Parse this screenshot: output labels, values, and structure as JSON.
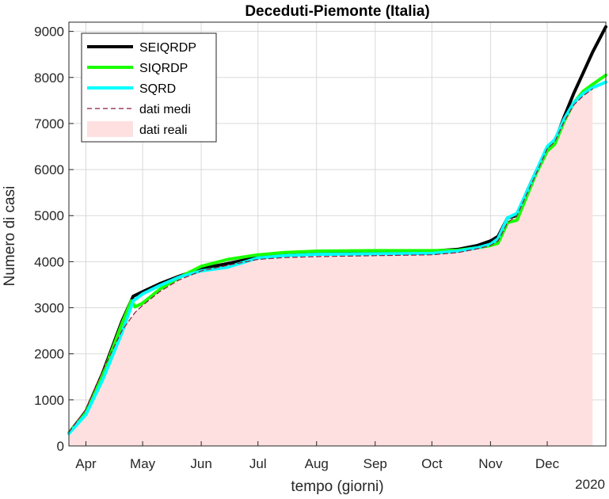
{
  "chart_data": {
    "type": "line",
    "title": "Deceduti-Piemonte (Italia)",
    "xlabel": "tempo (giorni)",
    "ylabel": "Numero di casi",
    "year_label": "2020",
    "x_unit": "date",
    "xlim": [
      "2020-03-23",
      "2021-01-01"
    ],
    "ylim": [
      0,
      9200
    ],
    "x_ticks": [
      {
        "date": "2020-04-01",
        "label": "Apr"
      },
      {
        "date": "2020-05-01",
        "label": "May"
      },
      {
        "date": "2020-06-01",
        "label": "Jun"
      },
      {
        "date": "2020-07-01",
        "label": "Jul"
      },
      {
        "date": "2020-08-01",
        "label": "Aug"
      },
      {
        "date": "2020-09-01",
        "label": "Sep"
      },
      {
        "date": "2020-10-01",
        "label": "Oct"
      },
      {
        "date": "2020-11-01",
        "label": "Nov"
      },
      {
        "date": "2020-12-01",
        "label": "Dec"
      }
    ],
    "y_ticks": [
      0,
      1000,
      2000,
      3000,
      4000,
      5000,
      6000,
      7000,
      8000,
      9000
    ],
    "grid": true,
    "legend_position": "top-left",
    "series": [
      {
        "name": "SEIQRDP",
        "color": "#000000",
        "style": "solid",
        "points": [
          [
            "2020-03-23",
            280
          ],
          [
            "2020-04-01",
            750
          ],
          [
            "2020-04-10",
            1600
          ],
          [
            "2020-04-20",
            2700
          ],
          [
            "2020-04-26",
            3250
          ],
          [
            "2020-04-30",
            3330
          ],
          [
            "2020-05-10",
            3520
          ],
          [
            "2020-05-20",
            3680
          ],
          [
            "2020-06-01",
            3850
          ],
          [
            "2020-06-15",
            3960
          ],
          [
            "2020-07-01",
            4100
          ],
          [
            "2020-07-15",
            4160
          ],
          [
            "2020-08-01",
            4200
          ],
          [
            "2020-09-01",
            4220
          ],
          [
            "2020-10-01",
            4230
          ],
          [
            "2020-10-15",
            4270
          ],
          [
            "2020-10-25",
            4350
          ],
          [
            "2020-11-01",
            4450
          ],
          [
            "2020-11-05",
            4550
          ],
          [
            "2020-11-10",
            4950
          ],
          [
            "2020-11-15",
            5000
          ],
          [
            "2020-11-20",
            5500
          ],
          [
            "2020-11-25",
            5950
          ],
          [
            "2020-12-01",
            6450
          ],
          [
            "2020-12-05",
            6600
          ],
          [
            "2020-12-10",
            7150
          ],
          [
            "2020-12-15",
            7650
          ],
          [
            "2020-12-20",
            8100
          ],
          [
            "2020-12-25",
            8550
          ],
          [
            "2021-01-01",
            9100
          ]
        ]
      },
      {
        "name": "SIQRDP",
        "color": "#1aff00",
        "style": "solid",
        "points": [
          [
            "2020-03-23",
            280
          ],
          [
            "2020-04-01",
            720
          ],
          [
            "2020-04-10",
            1550
          ],
          [
            "2020-04-20",
            2650
          ],
          [
            "2020-04-25",
            3150
          ],
          [
            "2020-04-27",
            3020
          ],
          [
            "2020-05-01",
            3100
          ],
          [
            "2020-05-10",
            3400
          ],
          [
            "2020-05-20",
            3650
          ],
          [
            "2020-06-01",
            3900
          ],
          [
            "2020-06-15",
            4050
          ],
          [
            "2020-07-01",
            4150
          ],
          [
            "2020-07-15",
            4200
          ],
          [
            "2020-08-01",
            4230
          ],
          [
            "2020-09-01",
            4240
          ],
          [
            "2020-10-01",
            4240
          ],
          [
            "2020-10-15",
            4250
          ],
          [
            "2020-10-25",
            4300
          ],
          [
            "2020-11-01",
            4350
          ],
          [
            "2020-11-05",
            4400
          ],
          [
            "2020-11-10",
            4850
          ],
          [
            "2020-11-15",
            4900
          ],
          [
            "2020-11-20",
            5400
          ],
          [
            "2020-11-25",
            5900
          ],
          [
            "2020-12-01",
            6400
          ],
          [
            "2020-12-05",
            6550
          ],
          [
            "2020-12-10",
            7050
          ],
          [
            "2020-12-15",
            7450
          ],
          [
            "2020-12-20",
            7700
          ],
          [
            "2020-12-25",
            7850
          ],
          [
            "2021-01-01",
            8050
          ]
        ]
      },
      {
        "name": "SQRD",
        "color": "#00ffff",
        "style": "solid",
        "points": [
          [
            "2020-03-23",
            270
          ],
          [
            "2020-04-01",
            680
          ],
          [
            "2020-04-10",
            1450
          ],
          [
            "2020-04-20",
            2450
          ],
          [
            "2020-04-26",
            3150
          ],
          [
            "2020-05-01",
            3300
          ],
          [
            "2020-05-10",
            3480
          ],
          [
            "2020-05-20",
            3660
          ],
          [
            "2020-06-01",
            3800
          ],
          [
            "2020-06-15",
            3880
          ],
          [
            "2020-07-01",
            4080
          ],
          [
            "2020-07-15",
            4130
          ],
          [
            "2020-08-01",
            4160
          ],
          [
            "2020-09-01",
            4170
          ],
          [
            "2020-10-01",
            4180
          ],
          [
            "2020-10-15",
            4230
          ],
          [
            "2020-10-25",
            4300
          ],
          [
            "2020-11-01",
            4380
          ],
          [
            "2020-11-05",
            4500
          ],
          [
            "2020-11-10",
            4950
          ],
          [
            "2020-11-15",
            5050
          ],
          [
            "2020-11-20",
            5500
          ],
          [
            "2020-11-25",
            5950
          ],
          [
            "2020-12-01",
            6500
          ],
          [
            "2020-12-05",
            6650
          ],
          [
            "2020-12-10",
            7100
          ],
          [
            "2020-12-15",
            7450
          ],
          [
            "2020-12-20",
            7650
          ],
          [
            "2020-12-25",
            7780
          ],
          [
            "2021-01-01",
            7900
          ]
        ]
      },
      {
        "name": "dati medi",
        "color": "#8b1a3a",
        "style": "dashed",
        "points": [
          [
            "2020-03-23",
            300
          ],
          [
            "2020-04-01",
            800
          ],
          [
            "2020-04-10",
            1650
          ],
          [
            "2020-04-20",
            2500
          ],
          [
            "2020-04-27",
            2900
          ],
          [
            "2020-05-01",
            3050
          ],
          [
            "2020-05-10",
            3350
          ],
          [
            "2020-05-20",
            3600
          ],
          [
            "2020-06-01",
            3800
          ],
          [
            "2020-06-15",
            3920
          ],
          [
            "2020-07-01",
            4050
          ],
          [
            "2020-07-15",
            4090
          ],
          [
            "2020-08-01",
            4110
          ],
          [
            "2020-09-01",
            4130
          ],
          [
            "2020-10-01",
            4150
          ],
          [
            "2020-10-15",
            4200
          ],
          [
            "2020-10-25",
            4280
          ],
          [
            "2020-11-01",
            4350
          ],
          [
            "2020-11-05",
            4450
          ],
          [
            "2020-11-10",
            4850
          ],
          [
            "2020-11-15",
            5000
          ],
          [
            "2020-11-20",
            5450
          ],
          [
            "2020-11-25",
            5900
          ],
          [
            "2020-12-01",
            6450
          ],
          [
            "2020-12-05",
            6600
          ],
          [
            "2020-12-10",
            7050
          ],
          [
            "2020-12-15",
            7400
          ],
          [
            "2020-12-20",
            7600
          ],
          [
            "2020-12-25",
            7750
          ]
        ]
      }
    ],
    "area": {
      "name": "dati reali",
      "color": "#ffe0e0",
      "points": [
        [
          "2020-03-23",
          300
        ],
        [
          "2020-04-01",
          800
        ],
        [
          "2020-04-10",
          1650
        ],
        [
          "2020-04-20",
          2500
        ],
        [
          "2020-04-27",
          2900
        ],
        [
          "2020-05-01",
          3050
        ],
        [
          "2020-05-10",
          3350
        ],
        [
          "2020-05-20",
          3600
        ],
        [
          "2020-06-01",
          3800
        ],
        [
          "2020-06-15",
          3920
        ],
        [
          "2020-07-01",
          4050
        ],
        [
          "2020-07-15",
          4090
        ],
        [
          "2020-08-01",
          4110
        ],
        [
          "2020-09-01",
          4130
        ],
        [
          "2020-10-01",
          4150
        ],
        [
          "2020-10-15",
          4200
        ],
        [
          "2020-10-25",
          4280
        ],
        [
          "2020-11-01",
          4350
        ],
        [
          "2020-11-05",
          4450
        ],
        [
          "2020-11-10",
          4850
        ],
        [
          "2020-11-15",
          5000
        ],
        [
          "2020-11-20",
          5450
        ],
        [
          "2020-11-25",
          5900
        ],
        [
          "2020-12-01",
          6450
        ],
        [
          "2020-12-05",
          6600
        ],
        [
          "2020-12-10",
          7050
        ],
        [
          "2020-12-15",
          7400
        ],
        [
          "2020-12-20",
          7600
        ],
        [
          "2020-12-25",
          7750
        ]
      ]
    }
  }
}
